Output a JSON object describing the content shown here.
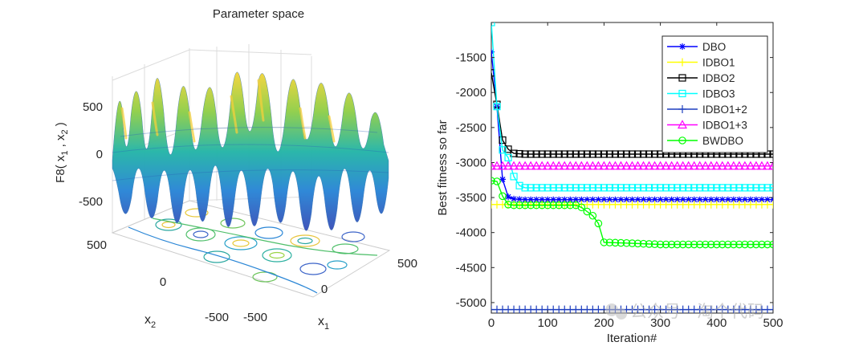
{
  "chart_data": [
    {
      "type": "surface3d",
      "title": "Parameter space",
      "zlabel": "F8( x_1 , x_2 )",
      "xlabel": "x_1",
      "ylabel": "x_2",
      "x_ticks": [
        "-500",
        "0",
        "500"
      ],
      "y_ticks": [
        "-500",
        "0",
        "500"
      ],
      "z_ticks": [
        "500",
        "0",
        "-500"
      ],
      "xlim": [
        -500,
        500
      ],
      "ylim": [
        -500,
        500
      ],
      "zlim": [
        -840,
        840
      ]
    },
    {
      "type": "line",
      "xlabel": "Iteration#",
      "ylabel": "Best fitness so far",
      "xlim": [
        0,
        500
      ],
      "ylim": [
        -5150,
        -1000
      ],
      "x_ticks": [
        "0",
        "100",
        "200",
        "300",
        "400",
        "500"
      ],
      "y_ticks": [
        "-1500",
        "-2000",
        "-2500",
        "-3000",
        "-3500",
        "-4000",
        "-4500",
        "-5000"
      ],
      "legend_position": "top-right",
      "series": [
        {
          "name": "DBO",
          "color": "#0000ff",
          "marker": "asterisk",
          "x": [
            0,
            10,
            20,
            30,
            40,
            60,
            100,
            200,
            300,
            400,
            500
          ],
          "y": [
            -1420,
            -2200,
            -3240,
            -3490,
            -3520,
            -3530,
            -3530,
            -3530,
            -3530,
            -3530,
            -3530
          ]
        },
        {
          "name": "IDBO1",
          "color": "#ffff00",
          "marker": "plus",
          "x": [
            0,
            100,
            200,
            300,
            400,
            500
          ],
          "y": [
            -3600,
            -3600,
            -3600,
            -3600,
            -3600,
            -3600
          ]
        },
        {
          "name": "IDBO2",
          "color": "#000000",
          "marker": "square",
          "x": [
            0,
            10,
            20,
            30,
            40,
            60,
            100,
            200,
            300,
            400,
            500
          ],
          "y": [
            -1720,
            -2170,
            -2680,
            -2810,
            -2870,
            -2880,
            -2880,
            -2880,
            -2880,
            -2880,
            -2880
          ]
        },
        {
          "name": "IDBO3",
          "color": "#00ffff",
          "marker": "square",
          "x": [
            0,
            10,
            20,
            30,
            40,
            50,
            60,
            100,
            200,
            300,
            400,
            500
          ],
          "y": [
            -1000,
            -2200,
            -2820,
            -2930,
            -3200,
            -3330,
            -3360,
            -3360,
            -3360,
            -3360,
            -3360,
            -3360
          ]
        },
        {
          "name": "IDBO1+2",
          "color": "#1f3fbf",
          "marker": "plus",
          "x": [
            0,
            100,
            200,
            300,
            400,
            500
          ],
          "y": [
            -5100,
            -5100,
            -5100,
            -5100,
            -5100,
            -5100
          ]
        },
        {
          "name": "IDBO1+3",
          "color": "#ff00ff",
          "marker": "triangle",
          "x": [
            0,
            100,
            200,
            300,
            400,
            500
          ],
          "y": [
            -3050,
            -3050,
            -3050,
            -3050,
            -3050,
            -3050
          ]
        },
        {
          "name": "BWDBO",
          "color": "#00ff00",
          "marker": "circle",
          "x": [
            0,
            10,
            20,
            30,
            40,
            100,
            150,
            160,
            170,
            180,
            190,
            200,
            240,
            300,
            400,
            500
          ],
          "y": [
            -3260,
            -3270,
            -3480,
            -3600,
            -3610,
            -3610,
            -3610,
            -3640,
            -3700,
            -3760,
            -3870,
            -4140,
            -4150,
            -4170,
            -4170,
            -4170
          ]
        }
      ]
    }
  ],
  "watermark": {
    "text": "公众号 · 淘个代码"
  }
}
